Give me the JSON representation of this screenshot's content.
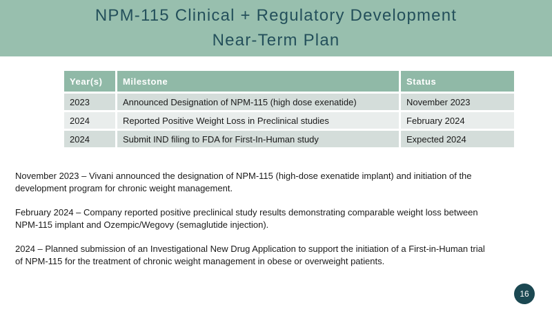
{
  "slide": {
    "title_line1": "NPM-115 Clinical + Regulatory Development",
    "title_line2": "Near-Term Plan",
    "page_number": "16"
  },
  "table": {
    "columns": [
      "Year(s)",
      "Milestone",
      "Status"
    ],
    "rows": [
      {
        "year": "2023",
        "milestone": "Announced Designation of NPM-115 (high dose exenatide)",
        "status": "November 2023"
      },
      {
        "year": "2024",
        "milestone": "Reported Positive Weight Loss in Preclinical studies",
        "status": "February 2024"
      },
      {
        "year": "2024",
        "milestone": "Submit IND filing to FDA for First-In-Human study",
        "status": "Expected 2024"
      }
    ]
  },
  "paragraphs": [
    {
      "line1": "November 2023 – Vivani announced the designation of NPM-115 (high-dose exenatide implant) and initiation of the",
      "line2": "development program for chronic weight management."
    },
    {
      "line1": "February 2024 – Company reported positive preclinical study results demonstrating comparable weight loss between",
      "line2": "NPM-115 implant and Ozempic/Wegovy (semaglutide injection)."
    },
    {
      "line1": "2024 – Planned submission of an Investigational New Drug Application to support the initiation of a First-in-Human trial",
      "line2": "of NPM-115 for the treatment of chronic weight management in obese or overweight patients."
    }
  ],
  "colors": {
    "band_green": "#98bfae",
    "title_text": "#24505b",
    "header_green": "#90b9a7",
    "row_odd": "#d4ddda",
    "row_even": "#e9edec",
    "page_circle": "#1b4852"
  }
}
